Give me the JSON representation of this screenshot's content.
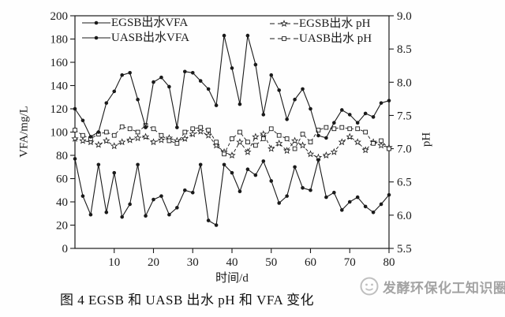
{
  "colors": {
    "line": "#1a1a1a",
    "watermark": "#a3a3a3",
    "background": "#fefefe"
  },
  "caption": {
    "text": "图 4   EGSB 和 UASB 出水 pH 和 VFA 变化"
  },
  "watermark": {
    "icon": "circle-logo",
    "text": "发酵环保化工知识圈"
  },
  "chart_data": {
    "type": "line",
    "xlabel": "时间/d",
    "ylabel_left": "VFA/mg/L",
    "ylabel_right": "pH",
    "xlim": [
      0,
      80
    ],
    "ylim_left": [
      0,
      200
    ],
    "ylim_right": [
      5.5,
      9.0
    ],
    "x_ticks": [
      10,
      20,
      30,
      40,
      50,
      60,
      70,
      80
    ],
    "left_ticks": [
      0,
      20,
      40,
      60,
      80,
      100,
      120,
      140,
      160,
      180,
      200
    ],
    "right_ticks": [
      5.5,
      6.0,
      6.5,
      7.0,
      7.5,
      8.0,
      8.5,
      9.0
    ],
    "grid": false,
    "legend_positions": {
      "vfa": "top-left-inside",
      "ph": "top-right"
    },
    "x": [
      0,
      2,
      4,
      6,
      8,
      10,
      12,
      14,
      16,
      18,
      20,
      22,
      24,
      26,
      28,
      30,
      32,
      34,
      36,
      38,
      40,
      42,
      44,
      46,
      48,
      50,
      52,
      54,
      56,
      58,
      60,
      62,
      64,
      66,
      68,
      70,
      72,
      74,
      76,
      78,
      80
    ],
    "series": [
      {
        "name": "EGSB出水VFA",
        "axis": "left",
        "marker": "filled-circle",
        "line": "solid",
        "values": [
          120,
          110,
          96,
          100,
          125,
          135,
          149,
          151,
          128,
          104,
          143,
          147,
          139,
          104,
          152,
          151,
          144,
          137,
          123,
          183,
          155,
          124,
          183,
          158,
          115,
          149,
          136,
          111,
          128,
          137,
          120,
          97,
          95,
          108,
          119,
          115,
          108,
          116,
          113,
          125,
          127
        ]
      },
      {
        "name": "UASB出水VFA",
        "axis": "left",
        "marker": "filled-circle",
        "line": "solid",
        "values": [
          77,
          45,
          29,
          72,
          31,
          65,
          27,
          38,
          72,
          28,
          42,
          45,
          29,
          35,
          50,
          48,
          72,
          24,
          20,
          72,
          65,
          49,
          68,
          63,
          75,
          58,
          39,
          45,
          70,
          52,
          50,
          76,
          44,
          48,
          33,
          40,
          44,
          36,
          31,
          38,
          46
        ]
      },
      {
        "name": "EGSB出水 pH",
        "axis": "right",
        "marker": "open-star",
        "line": "dashed",
        "values": [
          7.15,
          7.12,
          7.1,
          7.06,
          7.12,
          7.04,
          7.1,
          7.13,
          7.16,
          7.18,
          7.1,
          7.13,
          7.16,
          7.12,
          7.15,
          7.22,
          7.26,
          7.2,
          7.05,
          6.95,
          6.9,
          7.1,
          6.95,
          7.18,
          7.22,
          7.0,
          7.08,
          6.97,
          7.12,
          7.05,
          6.92,
          6.87,
          6.9,
          6.95,
          7.1,
          7.18,
          7.1,
          6.98,
          7.1,
          7.05,
          7.02
        ]
      },
      {
        "name": "UASB出水 pH",
        "axis": "right",
        "marker": "open-square",
        "line": "dashed",
        "values": [
          7.28,
          7.2,
          7.15,
          7.22,
          7.25,
          7.2,
          7.33,
          7.3,
          7.25,
          7.35,
          7.3,
          7.2,
          7.12,
          7.08,
          7.25,
          7.3,
          7.32,
          7.28,
          7.1,
          6.92,
          7.15,
          7.25,
          7.1,
          7.05,
          7.15,
          7.3,
          7.2,
          7.15,
          7.0,
          7.22,
          7.1,
          7.28,
          7.32,
          7.3,
          7.32,
          7.3,
          7.3,
          7.25,
          7.08,
          7.12,
          7.0
        ]
      }
    ]
  }
}
